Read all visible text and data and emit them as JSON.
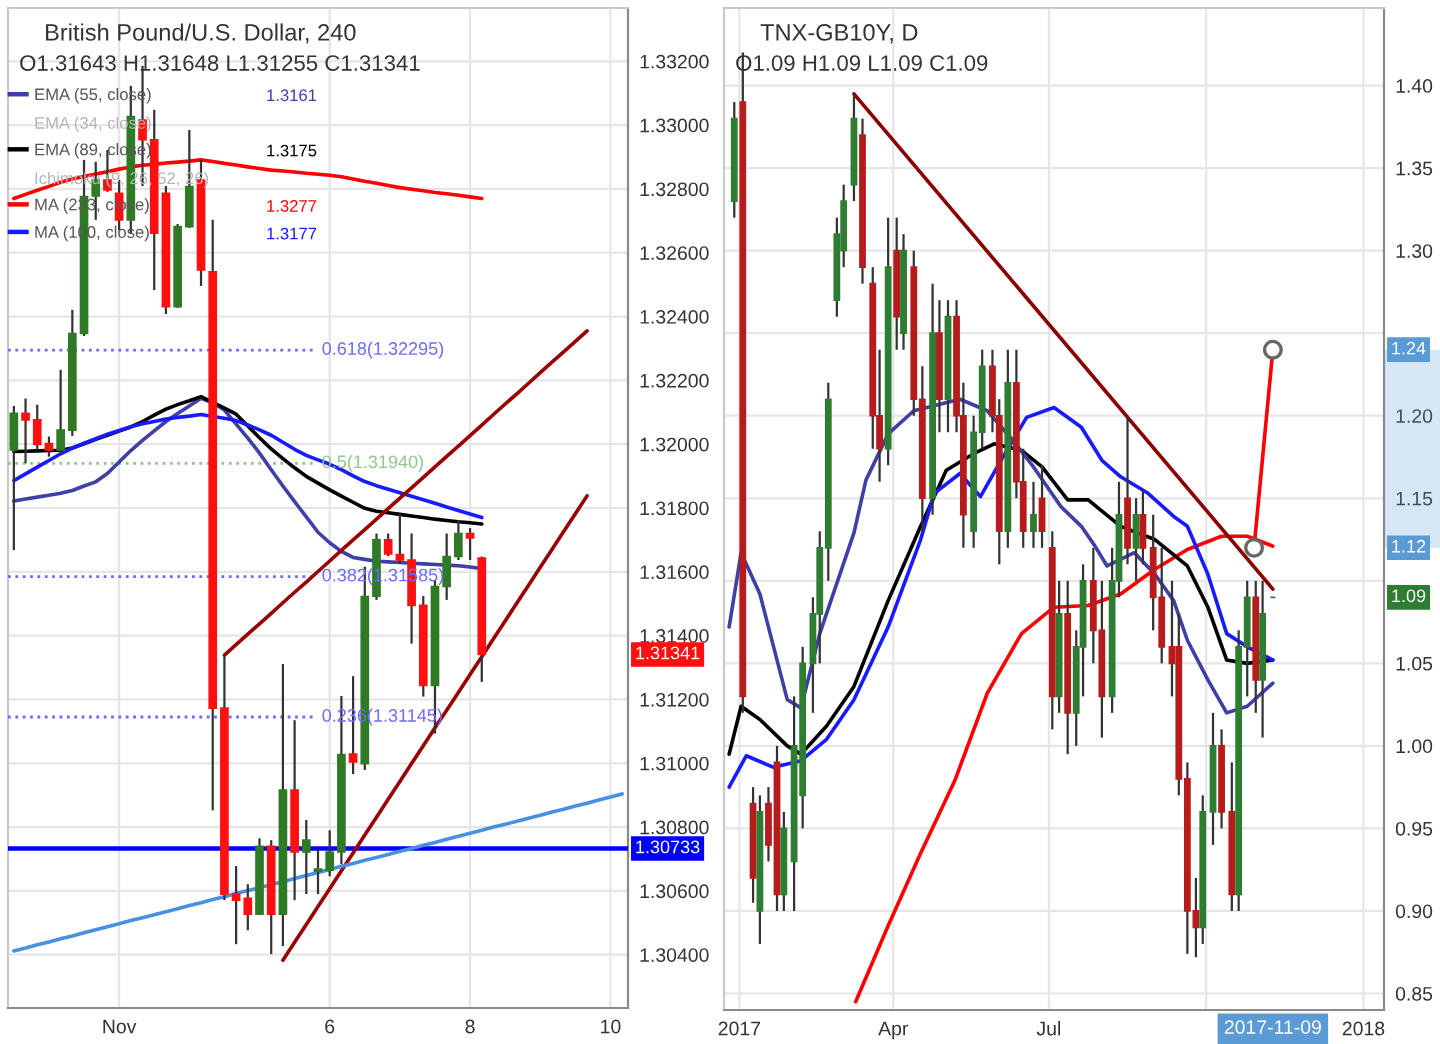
{
  "chart_data": [
    {
      "type": "candlestick",
      "title": "British Pound/U.S. Dollar, 240",
      "subtitle": "O1.31643 H1.31648 L1.31255 C1.31341",
      "categories": [
        null,
        null,
        null,
        null,
        null,
        null,
        null,
        null,
        null,
        "Nov",
        null,
        null,
        null,
        null,
        null,
        null,
        null,
        null,
        null,
        null,
        null,
        null,
        null,
        null,
        null,
        null,
        null,
        "6",
        null,
        null,
        null,
        null,
        null,
        null,
        null,
        null,
        null,
        null,
        null,
        "8",
        null,
        null,
        null,
        null,
        null,
        null,
        null,
        null,
        null,
        null,
        null,
        "10",
        null
      ],
      "ohlc": [
        [
          1.31982,
          1.3212,
          1.31668,
          1.32097
        ],
        [
          1.32097,
          1.32143,
          1.3194,
          1.32076
        ],
        [
          1.32076,
          1.32124,
          1.31982,
          1.31999
        ],
        [
          1.32002,
          1.32024,
          1.31961,
          1.31982
        ],
        [
          1.31982,
          1.32233,
          1.31971,
          1.32044
        ],
        [
          1.32044,
          1.32421,
          1.32026,
          1.32347
        ],
        [
          1.32347,
          1.32891,
          1.32339,
          1.32776
        ],
        [
          1.32778,
          1.32885,
          1.32703,
          1.32828
        ],
        [
          1.32828,
          1.32922,
          1.32791,
          1.32797
        ],
        [
          1.32786,
          1.32828,
          1.32671,
          1.32703
        ],
        [
          1.32703,
          1.33123,
          1.32659,
          1.33027
        ],
        [
          1.33016,
          1.33186,
          1.32809,
          1.32954
        ],
        [
          1.32954,
          1.33048,
          1.32483,
          1.32661
        ],
        [
          1.32786,
          1.32809,
          1.32408,
          1.32431
        ],
        [
          1.32431,
          1.3269,
          1.32427,
          1.32682
        ],
        [
          1.32682,
          1.32985,
          1.32678,
          1.32807
        ],
        [
          1.32828,
          1.32891,
          1.32496,
          1.32546
        ],
        [
          1.3254,
          1.32703,
          1.30853,
          1.31173
        ],
        [
          1.31173,
          1.31336,
          1.30571,
          1.3059
        ],
        [
          1.3059,
          1.30678,
          1.30433,
          1.30571
        ],
        [
          1.30577,
          1.30621,
          1.30477,
          1.30527
        ],
        [
          1.30527,
          1.30765,
          1.30527,
          1.3074
        ],
        [
          1.3074,
          1.30759,
          1.30402,
          1.30527
        ],
        [
          1.30527,
          1.31311,
          1.30427,
          1.30916
        ],
        [
          1.30916,
          1.31135,
          1.30571,
          1.30722
        ],
        [
          1.30722,
          1.30822,
          1.3059,
          1.30759
        ],
        [
          1.30662,
          1.30728,
          1.3059,
          1.30668
        ],
        [
          1.30665,
          1.3079,
          1.30646,
          1.30722
        ],
        [
          1.30722,
          1.31211,
          1.30684,
          1.31027
        ],
        [
          1.31029,
          1.31273,
          1.30966,
          1.31004
        ],
        [
          1.30999,
          1.31616,
          1.30979,
          1.31522
        ],
        [
          1.31524,
          1.3172,
          1.31512,
          1.317
        ],
        [
          1.317,
          1.3172,
          1.31649,
          1.31656
        ],
        [
          1.31654,
          1.31781,
          1.31626,
          1.31637
        ],
        [
          1.31637,
          1.3172,
          1.31375,
          1.31495
        ],
        [
          1.31495,
          1.31524,
          1.31209,
          1.31244
        ],
        [
          1.31244,
          1.31574,
          1.31093,
          1.31554
        ],
        [
          1.31554,
          1.3172,
          1.31512,
          1.31648
        ],
        [
          1.31648,
          1.31762,
          1.31637,
          1.3172
        ],
        [
          1.3172,
          1.31737,
          1.31637,
          1.31706
        ],
        [
          1.31643,
          1.31648,
          1.31255,
          1.31341
        ],
        null,
        null,
        null,
        null,
        null,
        null,
        null,
        null,
        null,
        null,
        null,
        null
      ],
      "colors": [
        "#2f7a24",
        "#ff1010",
        "#ff1010",
        "#ff1010",
        "#2f7a24",
        "#2f7a24",
        "#2f7a24",
        "#2f7a24",
        "#ff1010",
        "#ff1010",
        "#2f7a24",
        "#ff1010",
        "#ff1010",
        "#ff1010",
        "#2f7a24",
        "#2f7a24",
        "#ff1010",
        "#ff1010",
        "#ff1010",
        "#ff1010",
        "#ff1010",
        "#2f7a24",
        "#ff1010",
        "#2f7a24",
        "#ff1010",
        "#2f7a24",
        "#2f7a24",
        "#2f7a24",
        "#2f7a24",
        "#ff1010",
        "#2f7a24",
        "#2f7a24",
        "#ff1010",
        "#ff1010",
        "#ff1010",
        "#ff1010",
        "#2f7a24",
        "#2f7a24",
        "#2f7a24",
        "#ff1010",
        "#ff1010",
        null,
        null,
        null,
        null,
        null,
        null,
        null,
        null,
        null,
        null,
        null,
        null
      ],
      "series": [
        {
          "type": "line",
          "name": "EMA (55, close)",
          "color": "#3f3fa8",
          "values": [
            1.31822,
            1.31828,
            1.31834,
            1.3184,
            1.31846,
            1.31855,
            1.31869,
            1.31882,
            1.31908,
            1.31944,
            1.3198,
            1.32012,
            1.32042,
            1.32071,
            1.32096,
            1.3212,
            1.32144,
            1.3213,
            1.32107,
            1.32063,
            1.32019,
            1.31972,
            1.3192,
            1.31869,
            1.3182,
            1.31772,
            1.31724,
            1.31691,
            1.31664,
            1.31645,
            1.31639,
            1.31633,
            1.31631,
            1.31629,
            1.31627,
            1.31625,
            1.31623,
            1.31621,
            1.31619,
            1.31615,
            1.3161,
            null,
            null,
            null,
            null,
            null,
            null,
            null,
            null,
            null,
            null,
            null,
            null
          ]
        },
        {
          "type": "line",
          "name": "EMA (89, close)",
          "color": "#000000",
          "values": [
            1.31977,
            1.31978,
            1.31979,
            1.3198,
            1.31981,
            1.31988,
            1.32001,
            1.32015,
            1.32028,
            1.32041,
            1.32054,
            1.32071,
            1.32091,
            1.3211,
            1.32124,
            1.32136,
            1.32149,
            1.32131,
            1.32113,
            1.32094,
            1.32057,
            1.3202,
            1.31985,
            1.31955,
            1.31926,
            1.31899,
            1.31878,
            1.31857,
            1.31837,
            1.31818,
            1.31799,
            1.3179,
            1.31785,
            1.3178,
            1.31775,
            1.3177,
            1.31765,
            1.31761,
            1.31757,
            1.31754,
            1.3175,
            null,
            null,
            null,
            null,
            null,
            null,
            null,
            null,
            null,
            null,
            null,
            null
          ]
        },
        {
          "type": "line",
          "name": "MA (233, close)",
          "color": "#ff0000",
          "values": [
            1.3277,
            1.32783,
            1.32796,
            1.32808,
            1.32821,
            1.32831,
            1.32839,
            1.32847,
            1.32854,
            1.32862,
            1.32869,
            1.32874,
            1.32877,
            1.32881,
            1.32884,
            1.32887,
            1.32891,
            1.32886,
            1.3288,
            1.32875,
            1.32869,
            1.32864,
            1.32859,
            1.32856,
            1.32853,
            1.32849,
            1.32846,
            1.32843,
            1.32838,
            1.32831,
            1.32824,
            1.32818,
            1.32811,
            1.32804,
            1.32799,
            1.32794,
            1.32789,
            1.32785,
            1.3278,
            1.32775,
            1.3277,
            null,
            null,
            null,
            null,
            null,
            null,
            null,
            null,
            null,
            null,
            null,
            null
          ]
        },
        {
          "type": "line",
          "name": "MA (100, close)",
          "color": "#1a1aff",
          "values": [
            1.31886,
            1.31907,
            1.31928,
            1.31949,
            1.3197,
            1.31988,
            1.32003,
            1.32017,
            1.32031,
            1.32043,
            1.32055,
            1.32064,
            1.32071,
            1.32079,
            1.32084,
            1.32088,
            1.32093,
            1.32087,
            1.32081,
            1.32074,
            1.3206,
            1.32045,
            1.32028,
            1.32006,
            1.31984,
            1.31965,
            1.31951,
            1.31937,
            1.3192,
            1.31901,
            1.31883,
            1.3187,
            1.31859,
            1.31848,
            1.31837,
            1.31826,
            1.31815,
            1.31803,
            1.31792,
            1.31781,
            1.3177,
            null,
            null,
            null,
            null,
            null,
            null,
            null,
            null,
            null,
            null,
            null,
            null
          ]
        },
        {
          "type": "line",
          "color": "#990000",
          "values": [
            null,
            null,
            null,
            null,
            null,
            null,
            null,
            null,
            null,
            null,
            null,
            null,
            null,
            null,
            null,
            null,
            null,
            null,
            1.31339,
            1.31372,
            1.31405,
            1.31437,
            1.3147,
            1.31503,
            1.31536,
            1.31568,
            1.31601,
            1.31634,
            1.31667,
            1.317,
            1.31732,
            1.31765,
            1.31798,
            1.31831,
            1.31863,
            1.31896,
            1.31929,
            1.31962,
            1.31994,
            1.32027,
            1.3206,
            1.32093,
            1.32126,
            1.32158,
            1.32191,
            1.32224,
            1.32257,
            1.32289,
            1.32322,
            1.32355,
            null,
            null,
            null
          ]
        },
        {
          "type": "line",
          "color": "#990000",
          "values": [
            null,
            null,
            null,
            null,
            null,
            null,
            null,
            null,
            null,
            null,
            null,
            null,
            null,
            null,
            null,
            null,
            null,
            null,
            null,
            null,
            null,
            null,
            null,
            1.30383,
            1.30439,
            1.30495,
            1.30551,
            1.30607,
            1.30663,
            1.30719,
            1.30775,
            1.30831,
            1.30887,
            1.30943,
            1.30999,
            1.31055,
            1.31111,
            1.31166,
            1.31222,
            1.31278,
            1.31334,
            1.3139,
            1.31446,
            1.31502,
            1.31558,
            1.31614,
            1.3167,
            1.31726,
            1.31782,
            1.31838,
            null,
            null,
            null
          ]
        },
        {
          "type": "line",
          "color": "#4a90e2",
          "values": [
            1.30412,
            1.30421,
            1.30431,
            1.3044,
            1.3045,
            1.30459,
            1.30469,
            1.30478,
            1.30488,
            1.30497,
            1.30507,
            1.30516,
            1.30525,
            1.30535,
            1.30544,
            1.30554,
            1.30563,
            1.30573,
            1.30582,
            1.30592,
            1.30601,
            1.3061,
            1.3062,
            1.30629,
            1.30639,
            1.30648,
            1.30658,
            1.30667,
            1.30677,
            1.30686,
            1.30696,
            1.30705,
            1.30714,
            1.30724,
            1.30733,
            1.30743,
            1.30752,
            1.30762,
            1.30771,
            1.30781,
            1.3079,
            1.308,
            1.30809,
            1.30818,
            1.30828,
            1.30837,
            1.30847,
            1.30856,
            1.30866,
            1.30875,
            1.30885,
            1.30894,
            1.30904
          ]
        }
      ],
      "ylim": [
        1.30233,
        1.33367
      ],
      "yticks": [
        {
          "value": 1.304,
          "label": "1.30400"
        },
        {
          "value": 1.306,
          "label": "1.30600"
        },
        {
          "value": 1.308,
          "label": "1.30800"
        },
        {
          "value": 1.31,
          "label": "1.31000"
        },
        {
          "value": 1.312,
          "label": "1.31200"
        },
        {
          "value": 1.314,
          "label": "1.31400"
        },
        {
          "value": 1.316,
          "label": "1.31600"
        },
        {
          "value": 1.318,
          "label": "1.31800"
        },
        {
          "value": 1.32,
          "label": "1.32000"
        },
        {
          "value": 1.322,
          "label": "1.32200"
        },
        {
          "value": 1.324,
          "label": "1.32400"
        },
        {
          "value": 1.326,
          "label": "1.32600"
        },
        {
          "value": 1.328,
          "label": "1.32800"
        },
        {
          "value": 1.33,
          "label": "1.33000"
        },
        {
          "value": 1.332,
          "label": "1.33200"
        }
      ],
      "ref_lines": [
        {
          "axis": "y",
          "value": 1.30733,
          "label": "1.30733",
          "color": "#0000ff"
        },
        {
          "axis": "y",
          "value": 1.32295,
          "label": "0.618(1.32295)",
          "color": "#6b6bff",
          "line_style": "dotted"
        },
        {
          "axis": "y",
          "value": 1.3194,
          "label": "0.5(1.31940)",
          "color": "#8cc88c",
          "line_style": "dotted"
        },
        {
          "axis": "y",
          "value": 1.31585,
          "label": "0.382(1.31585)",
          "color": "#6b6bff",
          "line_style": "dotted"
        },
        {
          "axis": "y",
          "value": 1.31145,
          "label": "0.236(1.31145)",
          "color": "#6b6bff",
          "line_style": "dotted"
        }
      ],
      "annotations": [
        "1.3161",
        "1.3175",
        "1.3277",
        "1.3177",
        "EMA (34, close)",
        "Ichimoku (9, 26, 52, 26)",
        {
          "text": "1.31341",
          "y": 1.31341
        }
      ],
      "grid": true,
      "legend": "top left"
    },
    {
      "type": "candlestick",
      "title": "TNX-GB10Y, D",
      "subtitle": "O1.09 H1.09 L1.09 C1.09",
      "x": [
        "2016-12-29",
        "2017-01-03",
        "2017-01-09",
        "2017-01-13",
        "2017-01-18",
        "2017-01-23",
        "2017-01-27",
        "2017-02-02",
        "2017-02-07",
        "2017-02-13",
        "2017-02-17",
        "2017-02-22",
        "2017-02-27",
        "2017-03-03",
        "2017-03-09",
        "2017-03-14",
        "2017-03-20",
        "2017-03-24",
        "2017-03-29",
        "2017-04-03",
        "2017-04-07",
        "2017-04-13",
        "2017-04-18",
        "2017-04-24",
        "2017-04-28",
        "2017-05-03",
        "2017-05-08",
        "2017-05-12",
        "2017-05-18",
        "2017-05-23",
        "2017-05-29",
        "2017-06-02",
        "2017-06-07",
        "2017-06-12",
        "2017-06-16",
        "2017-06-22",
        "2017-06-27",
        "2017-07-03",
        "2017-07-07",
        "2017-07-12",
        "2017-07-17",
        "2017-07-21",
        "2017-07-27",
        "2017-08-01",
        "2017-08-07",
        "2017-08-11",
        "2017-08-16",
        "2017-08-21",
        "2017-08-25",
        "2017-08-31",
        "2017-09-05",
        "2017-09-11",
        "2017-09-15",
        "2017-09-20",
        "2017-09-25",
        "2017-09-29",
        "2017-10-05",
        "2017-10-10",
        "2017-10-16",
        "2017-10-20",
        "2017-10-25",
        "2017-10-30",
        "2017-11-03",
        "2017-11-09"
      ],
      "ohlc": [
        [
          1.33,
          1.39,
          1.32,
          1.38
        ],
        [
          1.39,
          1.42,
          1.02,
          1.03
        ],
        [
          0.965,
          0.975,
          0.905,
          0.92
        ],
        [
          0.9,
          0.97,
          0.88,
          0.96
        ],
        [
          0.965,
          0.975,
          0.93,
          0.94
        ],
        [
          0.99,
          1.0,
          0.9,
          0.91
        ],
        [
          0.91,
          0.96,
          0.9,
          0.95
        ],
        [
          0.93,
          1.03,
          0.9,
          1.0
        ],
        [
          0.97,
          1.06,
          0.95,
          1.05
        ],
        [
          1.05,
          1.09,
          1.02,
          1.08
        ],
        [
          1.08,
          1.13,
          1.05,
          1.12
        ],
        [
          1.12,
          1.22,
          1.1,
          1.21
        ],
        [
          1.27,
          1.32,
          1.26,
          1.31
        ],
        [
          1.3,
          1.34,
          1.29,
          1.33
        ],
        [
          1.34,
          1.395,
          1.33,
          1.38
        ],
        [
          1.37,
          1.38,
          1.28,
          1.29
        ],
        [
          1.28,
          1.29,
          1.18,
          1.2
        ],
        [
          1.2,
          1.24,
          1.16,
          1.18
        ],
        [
          1.18,
          1.32,
          1.17,
          1.29
        ],
        [
          1.3,
          1.32,
          1.24,
          1.26
        ],
        [
          1.25,
          1.31,
          1.24,
          1.3
        ],
        [
          1.29,
          1.3,
          1.2,
          1.21
        ],
        [
          1.21,
          1.23,
          1.13,
          1.15
        ],
        [
          1.15,
          1.28,
          1.14,
          1.25
        ],
        [
          1.25,
          1.27,
          1.19,
          1.21
        ],
        [
          1.21,
          1.27,
          1.19,
          1.26
        ],
        [
          1.26,
          1.27,
          1.19,
          1.2
        ],
        [
          1.2,
          1.22,
          1.12,
          1.14
        ],
        [
          1.13,
          1.2,
          1.12,
          1.19
        ],
        [
          1.19,
          1.24,
          1.18,
          1.23
        ],
        [
          1.23,
          1.24,
          1.19,
          1.2
        ],
        [
          1.2,
          1.21,
          1.11,
          1.13
        ],
        [
          1.13,
          1.24,
          1.12,
          1.22
        ],
        [
          1.22,
          1.24,
          1.15,
          1.16
        ],
        [
          1.16,
          1.18,
          1.12,
          1.13
        ],
        [
          1.13,
          1.16,
          1.12,
          1.14
        ],
        [
          1.15,
          1.17,
          1.12,
          1.13
        ],
        [
          1.12,
          1.13,
          1.01,
          1.03
        ],
        [
          1.03,
          1.1,
          1.02,
          1.08
        ],
        [
          1.08,
          1.1,
          0.995,
          1.02
        ],
        [
          1.02,
          1.07,
          1.0,
          1.06
        ],
        [
          1.06,
          1.11,
          1.03,
          1.1
        ],
        [
          1.1,
          1.12,
          1.05,
          1.07
        ],
        [
          1.07,
          1.1,
          1.005,
          1.03
        ],
        [
          1.03,
          1.12,
          1.02,
          1.1
        ],
        [
          1.1,
          1.16,
          1.09,
          1.14
        ],
        [
          1.15,
          1.2,
          1.11,
          1.12
        ],
        [
          1.12,
          1.15,
          1.1,
          1.14
        ],
        [
          1.14,
          1.155,
          1.11,
          1.12
        ],
        [
          1.12,
          1.14,
          1.07,
          1.09
        ],
        [
          1.09,
          1.12,
          1.05,
          1.06
        ],
        [
          1.06,
          1.1,
          1.03,
          1.05
        ],
        [
          1.06,
          1.08,
          0.97,
          0.98
        ],
        [
          0.98,
          0.99,
          0.874,
          0.9
        ],
        [
          0.9,
          0.92,
          0.872,
          0.89
        ],
        [
          0.89,
          0.97,
          0.88,
          0.96
        ],
        [
          0.96,
          1.02,
          0.94,
          1.0
        ],
        [
          1.0,
          1.01,
          0.95,
          0.96
        ],
        [
          0.96,
          0.99,
          0.9,
          0.91
        ],
        [
          0.91,
          1.07,
          0.9,
          1.06
        ],
        [
          1.06,
          1.1,
          1.03,
          1.09
        ],
        [
          1.09,
          1.1,
          1.02,
          1.04
        ],
        [
          1.04,
          1.1,
          1.005,
          1.08
        ],
        [
          1.09,
          1.09,
          1.09,
          1.09
        ]
      ],
      "colors": [
        "#2e7d32",
        "#b71c1c",
        "#b71c1c",
        "#2e7d32",
        "#b71c1c",
        "#b71c1c",
        "#2e7d32",
        "#2e7d32",
        "#2e7d32",
        "#2e7d32",
        "#2e7d32",
        "#2e7d32",
        "#2e7d32",
        "#2e7d32",
        "#2e7d32",
        "#b71c1c",
        "#b71c1c",
        "#b71c1c",
        "#2e7d32",
        "#b71c1c",
        "#2e7d32",
        "#b71c1c",
        "#b71c1c",
        "#2e7d32",
        "#b71c1c",
        "#2e7d32",
        "#b71c1c",
        "#b71c1c",
        "#2e7d32",
        "#2e7d32",
        "#b71c1c",
        "#b71c1c",
        "#2e7d32",
        "#b71c1c",
        "#b71c1c",
        "#2e7d32",
        "#b71c1c",
        "#b71c1c",
        "#2e7d32",
        "#b71c1c",
        "#2e7d32",
        "#2e7d32",
        "#b71c1c",
        "#b71c1c",
        "#2e7d32",
        "#2e7d32",
        "#b71c1c",
        "#2e7d32",
        "#b71c1c",
        "#b71c1c",
        "#b71c1c",
        "#b71c1c",
        "#b71c1c",
        "#b71c1c",
        "#b71c1c",
        "#2e7d32",
        "#2e7d32",
        "#b71c1c",
        "#b71c1c",
        "#2e7d32",
        "#2e7d32",
        "#b71c1c",
        "#2e7d32",
        "#2e7d32"
      ],
      "series": [
        {
          "type": "line",
          "color": "#ff0000",
          "x": [
            "2017-03-10",
            "2017-03-29",
            "2017-04-17",
            "2017-05-07",
            "2017-05-26",
            "2017-06-15",
            "2017-07-04",
            "2017-07-24",
            "2017-08-12",
            "2017-09-01",
            "2017-09-20",
            "2017-10-10",
            "2017-10-25",
            "2017-11-09"
          ],
          "values": [
            0.845,
            0.891,
            0.935,
            0.979,
            1.032,
            1.068,
            1.084,
            1.085,
            1.092,
            1.107,
            1.119,
            1.127,
            1.127,
            1.121
          ]
        },
        {
          "type": "line",
          "color": "#000000",
          "x": [
            "2016-12-26",
            "2017-01-02",
            "2017-01-13",
            "2017-01-29",
            "2017-02-06",
            "2017-02-21",
            "2017-03-09",
            "2017-03-29",
            "2017-04-17",
            "2017-05-02",
            "2017-05-18",
            "2017-05-30",
            "2017-06-15",
            "2017-06-27",
            "2017-07-12",
            "2017-07-24",
            "2017-08-12",
            "2017-09-01",
            "2017-09-20",
            "2017-10-02",
            "2017-10-13",
            "2017-10-25",
            "2017-11-09"
          ],
          "values": [
            0.995,
            1.024,
            1.016,
            1.0,
            0.995,
            1.012,
            1.036,
            1.088,
            1.133,
            1.167,
            1.177,
            1.183,
            1.179,
            1.169,
            1.149,
            1.149,
            1.133,
            1.125,
            1.109,
            1.084,
            1.052,
            1.05,
            1.052
          ]
        },
        {
          "type": "line",
          "color": "#1a1aff",
          "x": [
            "2016-12-26",
            "2017-01-05",
            "2017-01-21",
            "2017-02-06",
            "2017-02-21",
            "2017-03-09",
            "2017-03-29",
            "2017-04-17",
            "2017-04-25",
            "2017-05-10",
            "2017-05-22",
            "2017-06-03",
            "2017-06-18",
            "2017-07-04",
            "2017-07-20",
            "2017-08-01",
            "2017-08-12",
            "2017-08-28",
            "2017-09-12",
            "2017-09-20",
            "2017-10-02",
            "2017-10-13",
            "2017-10-25",
            "2017-11-09"
          ],
          "values": [
            0.975,
            0.994,
            0.987,
            0.991,
            1.004,
            1.028,
            1.072,
            1.125,
            1.153,
            1.165,
            1.151,
            1.173,
            1.199,
            1.205,
            1.193,
            1.173,
            1.163,
            1.153,
            1.139,
            1.133,
            1.104,
            1.068,
            1.06,
            1.052
          ]
        },
        {
          "type": "line",
          "color": "#3f3fa8",
          "x": [
            "2016-12-26",
            "2017-01-02",
            "2017-01-13",
            "2017-01-29",
            "2017-02-06",
            "2017-02-17",
            "2017-03-09",
            "2017-03-16",
            "2017-03-29",
            "2017-04-13",
            "2017-05-10",
            "2017-05-26",
            "2017-06-10",
            "2017-06-22",
            "2017-07-08",
            "2017-07-20",
            "2017-07-28",
            "2017-08-04",
            "2017-08-20",
            "2017-09-01",
            "2017-09-12",
            "2017-09-20",
            "2017-10-02",
            "2017-10-13",
            "2017-10-25",
            "2017-11-09"
          ],
          "values": [
            1.072,
            1.117,
            1.092,
            1.028,
            1.023,
            1.068,
            1.129,
            1.161,
            1.189,
            1.203,
            1.21,
            1.203,
            1.185,
            1.169,
            1.145,
            1.133,
            1.121,
            1.109,
            1.117,
            1.104,
            1.088,
            1.064,
            1.04,
            1.02,
            1.024,
            1.038
          ]
        },
        {
          "type": "line",
          "color": "#8b0000",
          "x": [
            "2017-03-09",
            "2017-11-09"
          ],
          "values": [
            1.395,
            1.095
          ]
        },
        {
          "type": "line",
          "color": "#ff0000",
          "marker": "circle",
          "x": [
            "2017-10-29",
            "2017-11-09"
          ],
          "values": [
            1.12,
            1.24
          ]
        }
      ],
      "xlim": [
        "2016-12-23",
        "2018-01-13"
      ],
      "xticks": [
        {
          "value": "2017-01-01",
          "label": "2017"
        },
        {
          "value": "2017-04-01",
          "label": "Apr"
        },
        {
          "value": "2017-07-01",
          "label": "Jul"
        },
        {
          "value": "2017-10-01",
          "label": null
        },
        {
          "value": "2018-01-01",
          "label": "2018"
        }
      ],
      "ylim": [
        0.84,
        1.447
      ],
      "yticks": [
        0.85,
        {
          "value": 0.9,
          "label": "0.90"
        },
        0.95,
        {
          "value": 1.0,
          "label": "1.00"
        },
        1.05,
        {
          "value": 1.1,
          "label": null
        },
        1.15,
        {
          "value": 1.2,
          "label": "1.20"
        },
        {
          "value": 1.25,
          "label": null
        },
        {
          "value": 1.3,
          "label": "1.30"
        },
        1.35,
        {
          "value": 1.4,
          "label": "1.40"
        }
      ],
      "annotations": [
        "2017-11-09",
        {
          "text": "1.24",
          "y": 1.24
        },
        {
          "text": "1.12",
          "y": 1.12
        },
        {
          "text": "1.09",
          "y": 1.09
        }
      ],
      "grid": true
    }
  ]
}
